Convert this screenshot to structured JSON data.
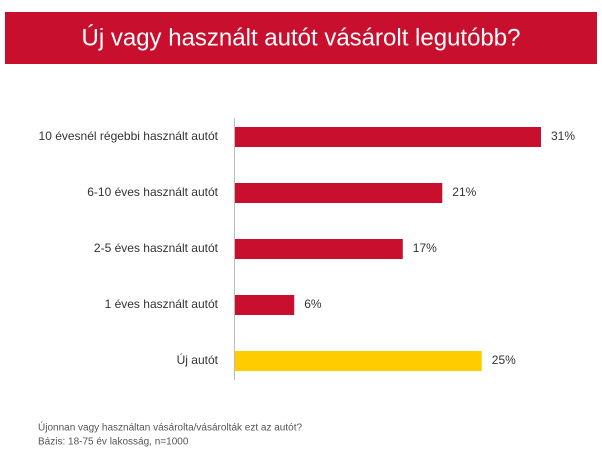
{
  "chart_data": {
    "type": "hbar",
    "title": "Új vagy használt autót vásárolt legutóbb?",
    "categories": [
      "10 évesnél régebbi használt autót",
      "6-10 éves használt autót",
      "2-5 éves használt autót",
      "1 éves használt autót",
      "Új autót"
    ],
    "values": [
      31,
      21,
      17,
      6,
      25
    ],
    "value_labels": [
      "31%",
      "21%",
      "17%",
      "6%",
      "25%"
    ],
    "colors": [
      "#c8102e",
      "#c8102e",
      "#c8102e",
      "#c8102e",
      "#ffcc00"
    ],
    "notes": [
      "Újonnan vagy használtan vásárolta/vásárolták ezt az autót?",
      "Bázis: 18-75 év lakosság, n=1000"
    ]
  }
}
